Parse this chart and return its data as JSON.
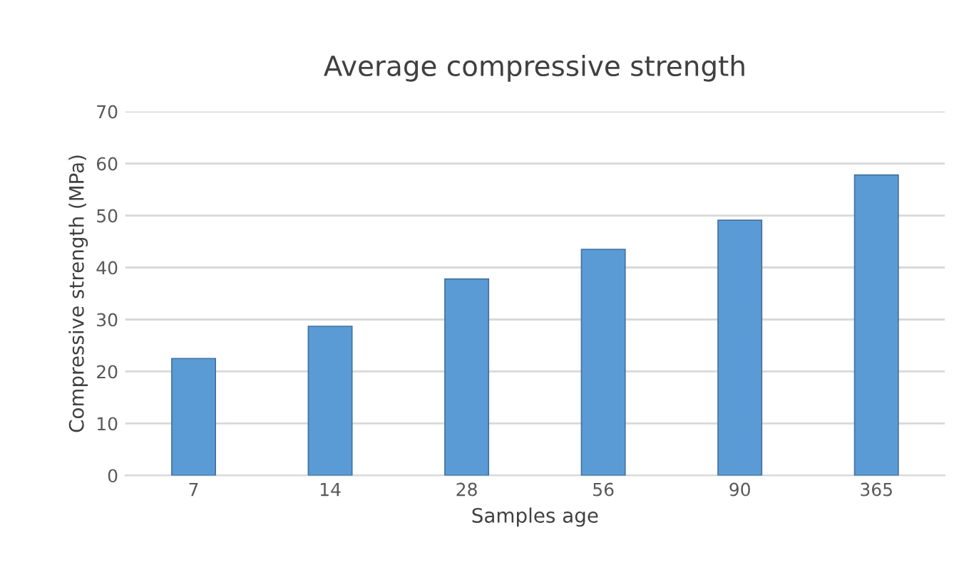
{
  "chart_data": {
    "type": "bar",
    "title": "Average compressive strength",
    "xlabel": "Samples age",
    "ylabel": "Compressive strength (MPa)",
    "categories": [
      "7",
      "14",
      "28",
      "56",
      "90",
      "365"
    ],
    "values": [
      22.5,
      28.7,
      37.8,
      43.5,
      49.1,
      57.8
    ],
    "color": "#5b9bd5",
    "ylim": [
      0,
      70
    ],
    "yticks": [
      0,
      10,
      20,
      30,
      40,
      50,
      60,
      70
    ],
    "grid": "y"
  }
}
